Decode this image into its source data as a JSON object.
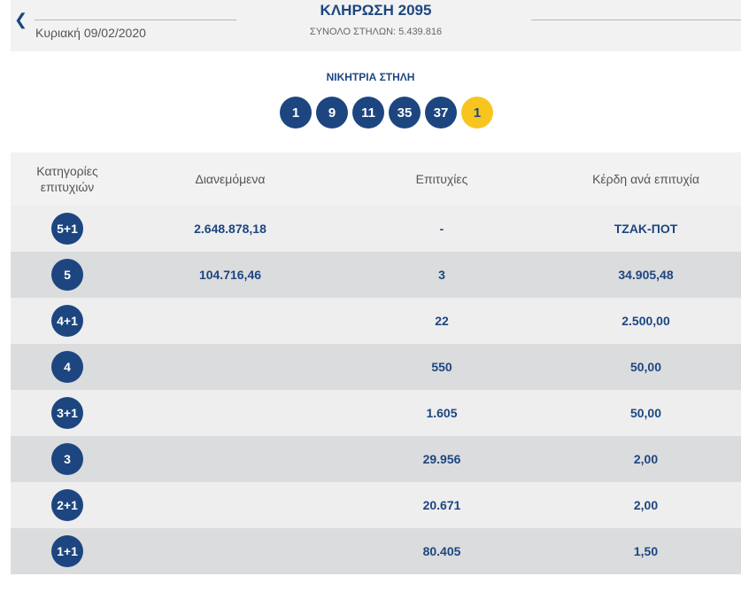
{
  "header": {
    "title": "ΚΛΗΡΩΣΗ 2095",
    "subtitle": "ΣΥΝΟΛΟ ΣΤΗΛΩΝ: 5.439.816",
    "date": "Κυριακή 09/02/2020",
    "back_icon": "chevron-left-icon"
  },
  "winning": {
    "label": "ΝΙΚΗΤΡΙΑ ΣΤΗΛΗ",
    "numbers": [
      "1",
      "9",
      "11",
      "35",
      "37"
    ],
    "joker": "1"
  },
  "table": {
    "headers": {
      "category": "Κατηγορίες επιτυχιών",
      "distributed": "Διανεμόμενα",
      "winners": "Επιτυχίες",
      "prize": "Κέρδη ανά επιτυχία"
    },
    "rows": [
      {
        "category": "5+1",
        "distributed": "2.648.878,18",
        "winners": "-",
        "prize": "ΤΖΑΚ-ΠΟΤ"
      },
      {
        "category": "5",
        "distributed": "104.716,46",
        "winners": "3",
        "prize": "34.905,48"
      },
      {
        "category": "4+1",
        "distributed": "",
        "winners": "22",
        "prize": "2.500,00"
      },
      {
        "category": "4",
        "distributed": "",
        "winners": "550",
        "prize": "50,00"
      },
      {
        "category": "3+1",
        "distributed": "",
        "winners": "1.605",
        "prize": "50,00"
      },
      {
        "category": "3",
        "distributed": "",
        "winners": "29.956",
        "prize": "2,00"
      },
      {
        "category": "2+1",
        "distributed": "",
        "winners": "20.671",
        "prize": "2,00"
      },
      {
        "category": "1+1",
        "distributed": "",
        "winners": "80.405",
        "prize": "1,50"
      }
    ]
  },
  "colors": {
    "primary": "#1d4680",
    "joker": "#f7c51e",
    "row_dark": "#dbdcde",
    "row_light": "#eeeeef",
    "header_bg": "#f2f2f2"
  }
}
